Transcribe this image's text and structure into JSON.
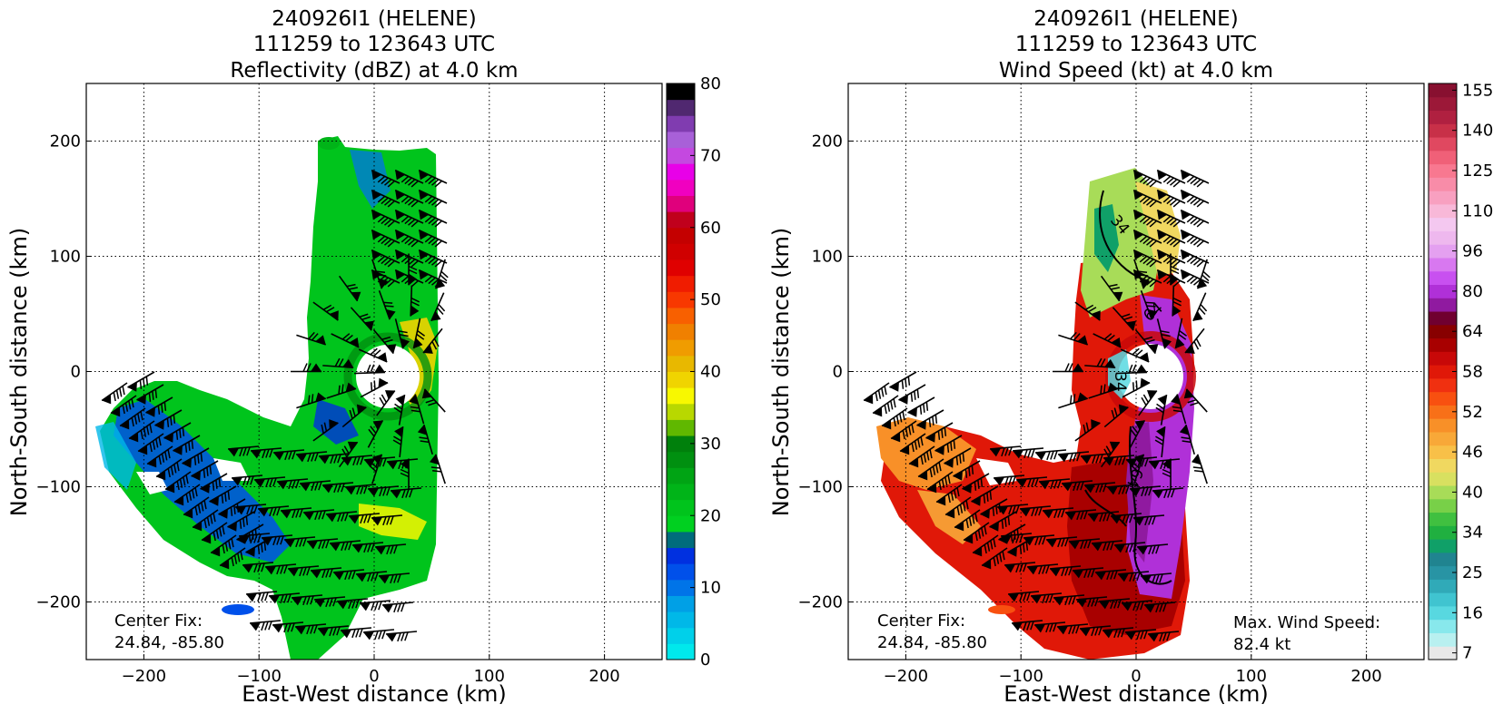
{
  "chart_data": [
    {
      "type": "heatmap",
      "title": [
        "240926I1 (HELENE)",
        "111259 to 123643 UTC",
        "Reflectivity (dBZ) at 4.0 km"
      ],
      "xlabel": "East-West distance (km)",
      "ylabel": "North-South distance (km)",
      "xlim": [
        -250,
        250
      ],
      "ylim": [
        -250,
        250
      ],
      "xticks": [
        -200,
        -100,
        0,
        100,
        200
      ],
      "yticks": [
        -200,
        -100,
        0,
        100,
        200
      ],
      "grid": true,
      "colorbar": {
        "min": 0,
        "max": 80,
        "ticks": [
          0,
          10,
          20,
          30,
          40,
          50,
          60,
          70,
          80
        ],
        "colors": [
          "#00e8ec",
          "#00d0ea",
          "#00b8e8",
          "#00a0e6",
          "#0074e8",
          "#0050ea",
          "#0030e0",
          "#006c7c",
          "#00d020",
          "#00c41c",
          "#00b418",
          "#00a414",
          "#009010",
          "#00800c",
          "#60b800",
          "#b8d800",
          "#f8f800",
          "#f0d400",
          "#e8b800",
          "#f09c00",
          "#f08000",
          "#f86000",
          "#f83800",
          "#f01c00",
          "#e00000",
          "#d00000",
          "#c40000",
          "#c0001c",
          "#e0007c",
          "#f000c0",
          "#e800e8",
          "#c448e0",
          "#a860d8",
          "#803cb0",
          "#502870",
          "#000000"
        ]
      },
      "annotation": [
        "Center Fix:",
        "24.84, -85.80"
      ]
    },
    {
      "type": "heatmap",
      "title": [
        "240926I1 (HELENE)",
        "111259 to 123643 UTC",
        "Wind Speed (kt) at 4.0 km"
      ],
      "xlabel": "East-West distance (km)",
      "ylabel": "North-South distance (km)",
      "xlim": [
        -250,
        250
      ],
      "ylim": [
        -250,
        250
      ],
      "xticks": [
        -200,
        -100,
        0,
        100,
        200
      ],
      "yticks": [
        -200,
        -100,
        0,
        100,
        200
      ],
      "grid": true,
      "contour_labels": [
        "34",
        "64",
        "34",
        "64"
      ],
      "colorbar": {
        "ticks": [
          "7",
          "16",
          "25",
          "34",
          "40",
          "46",
          "52",
          "58",
          "64",
          "80",
          "96",
          "110",
          "125",
          "140",
          "155"
        ],
        "colors": [
          "#e8e8e8",
          "#b8f0f0",
          "#88e8ec",
          "#58d8e0",
          "#40c4d0",
          "#30aab8",
          "#2894a4",
          "#208490",
          "#10a068",
          "#20b040",
          "#40c040",
          "#78d048",
          "#a8dc58",
          "#d8e060",
          "#f0d860",
          "#f8c048",
          "#f8a838",
          "#f89028",
          "#f87018",
          "#f85010",
          "#f03010",
          "#e01808",
          "#c80808",
          "#a80000",
          "#880000",
          "#700030",
          "#901aa0",
          "#b030d8",
          "#c850f0",
          "#d878f0",
          "#e4a0f0",
          "#eeb8ee",
          "#f4c8f0",
          "#f8b8d8",
          "#f8a0c0",
          "#f88ca8",
          "#f87890",
          "#f06078",
          "#e04860",
          "#c83048",
          "#b02040",
          "#9c1838",
          "#881030"
        ]
      },
      "annotation": [
        "Center Fix:",
        "24.84, -85.80"
      ],
      "max_wind_annotation": [
        "Max. Wind Speed:",
        "82.4 kt"
      ]
    }
  ]
}
